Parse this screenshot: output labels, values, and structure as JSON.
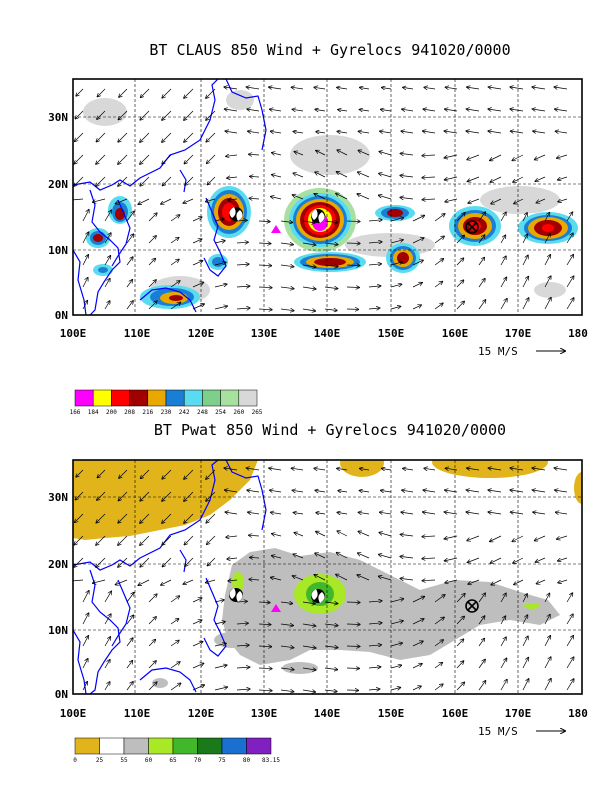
{
  "panels": [
    {
      "id": "claus",
      "title": "BT CLAUS 850 Wind + Gyrelocs 941020/0000",
      "lat_labels": [
        "0N",
        "10N",
        "20N",
        "30N"
      ],
      "lon_labels": [
        "100E",
        "110E",
        "120E",
        "130E",
        "140E",
        "150E",
        "160E",
        "170E",
        "180"
      ],
      "reference_vector": "15 M/S",
      "colorbar": {
        "labels": [
          "166",
          "184",
          "200",
          "208",
          "216",
          "230",
          "242",
          "248",
          "254",
          "260",
          "265"
        ],
        "colors": [
          "#ff00ff",
          "#ffff00",
          "#ff0000",
          "#a00000",
          "#e8a800",
          "#1a7fd4",
          "#5adcf0",
          "#7dd08c",
          "#a8e0a0",
          "#d8d8d8"
        ]
      }
    },
    {
      "id": "pwat",
      "title": "BT Pwat 850 Wind + Gyrelocs 941020/0000",
      "lat_labels": [
        "0N",
        "10N",
        "20N",
        "30N"
      ],
      "lon_labels": [
        "100E",
        "110E",
        "120E",
        "130E",
        "140E",
        "150E",
        "160E",
        "170E",
        "180"
      ],
      "reference_vector": "15 M/S",
      "colorbar": {
        "labels": [
          "0",
          "25",
          "55",
          "60",
          "65",
          "70",
          "75",
          "80",
          "83.15"
        ],
        "colors": [
          "#e0b41a",
          "#ffffff",
          "#bebebe",
          "#a8e826",
          "#40b82a",
          "#1a7a1a",
          "#1a70d0",
          "#8020c0"
        ]
      }
    }
  ],
  "markers": {
    "cyclone_symbol": "tropical-cyclone-icon",
    "gyre_symbol": "circled-x-icon",
    "triangle_symbol": "magenta-triangle-icon"
  },
  "colors": {
    "coastline": "#0000ff",
    "grid": "#000000",
    "magenta": "#ff00ff"
  }
}
